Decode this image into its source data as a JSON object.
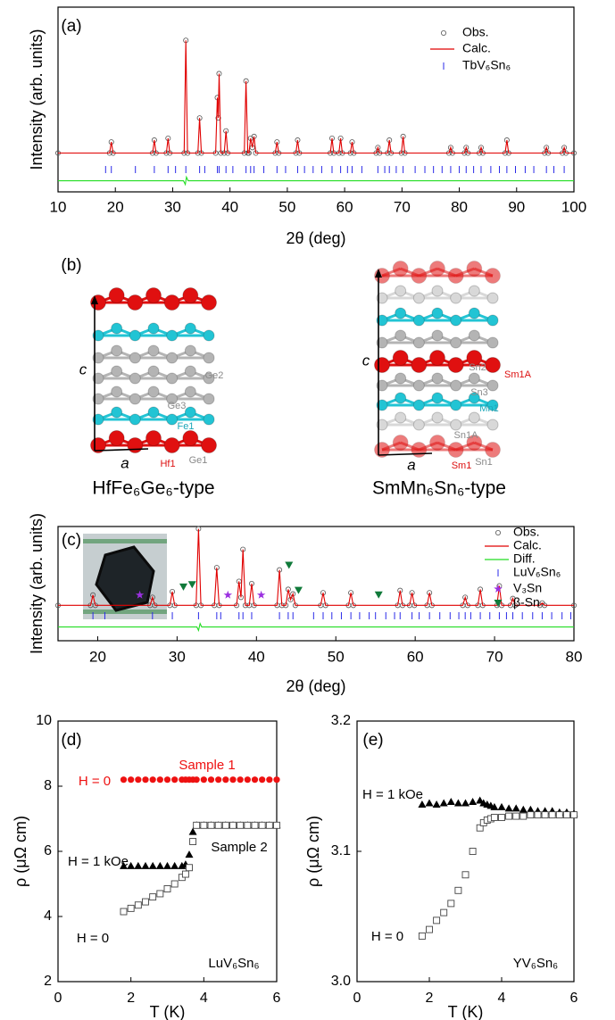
{
  "chart_data": [
    {
      "type": "line",
      "panel_label": "(a)",
      "xlabel": "2θ (deg)",
      "ylabel": "Intensity (arb. units)",
      "xlim": [
        10,
        100
      ],
      "xticks": [
        10,
        20,
        30,
        40,
        50,
        60,
        70,
        80,
        90,
        100
      ],
      "ylim": [
        0,
        100
      ],
      "x": [
        10,
        19.0,
        19.3,
        19.6,
        26.5,
        26.8,
        27.1,
        28.9,
        29.2,
        29.5,
        32.0,
        32.3,
        32.6,
        34.4,
        34.7,
        35.0,
        37.5,
        37.8,
        37.95,
        38.1,
        38.4,
        39.0,
        39.3,
        39.6,
        42.5,
        42.8,
        43.1,
        43.3,
        43.6,
        43.9,
        44.2,
        44.5,
        47.9,
        48.2,
        48.5,
        51.5,
        51.8,
        52.1,
        57.5,
        57.8,
        58.1,
        59.0,
        59.3,
        59.6,
        61.0,
        61.3,
        61.6,
        65.5,
        65.8,
        66.1,
        67.5,
        67.8,
        68.1,
        69.9,
        70.2,
        70.5,
        78.2,
        78.5,
        78.8,
        80.9,
        81.2,
        81.5,
        83.5,
        83.8,
        84.1,
        88.0,
        88.3,
        88.6,
        94.9,
        95.2,
        95.5,
        98.0,
        98.3,
        98.6,
        100
      ],
      "series": [
        {
          "name": "Obs.",
          "color": "#555555",
          "marker": "open-circle",
          "values": [
            21,
            21,
            27,
            21,
            21,
            28,
            21,
            21,
            29,
            21,
            21,
            82,
            21,
            21,
            40,
            21,
            21,
            51,
            40,
            64,
            21,
            21,
            33,
            21,
            21,
            60,
            21,
            21,
            29,
            24,
            30,
            21,
            21,
            27,
            21,
            21,
            28,
            21,
            21,
            29,
            21,
            21,
            29,
            21,
            21,
            27,
            21,
            21,
            24,
            21,
            21,
            28,
            21,
            21,
            30,
            21,
            21,
            24,
            21,
            21,
            24,
            21,
            21,
            24,
            21,
            21,
            28,
            21,
            21,
            24,
            21,
            21,
            24,
            21,
            21
          ]
        },
        {
          "name": "Calc.",
          "color": "#e00000",
          "marker": "line",
          "values": [
            21,
            21,
            27,
            21,
            21,
            28,
            21,
            21,
            29,
            21,
            21,
            82,
            21,
            21,
            40,
            21,
            21,
            51,
            40,
            64,
            21,
            21,
            33,
            21,
            21,
            60,
            21,
            21,
            29,
            24,
            30,
            21,
            21,
            27,
            21,
            21,
            28,
            21,
            21,
            29,
            21,
            21,
            29,
            21,
            21,
            27,
            21,
            21,
            24,
            21,
            21,
            28,
            21,
            21,
            30,
            21,
            21,
            24,
            21,
            21,
            24,
            21,
            21,
            24,
            21,
            21,
            28,
            21,
            21,
            24,
            21,
            21,
            24,
            21,
            21
          ]
        },
        {
          "name": "TbV₆Sn₆",
          "color": "#2a2ae8",
          "marker": "tick",
          "x": [
            18.3,
            19.3,
            23.5,
            26.8,
            29.2,
            30.5,
            32.3,
            34.7,
            35.6,
            37.8,
            38.1,
            39.3,
            40.5,
            42.8,
            43.6,
            44.2,
            45.9,
            48.2,
            49.7,
            51.8,
            53.0,
            54.5,
            56.0,
            57.8,
            59.3,
            60.5,
            61.3,
            63.0,
            65.8,
            67.0,
            67.8,
            69.0,
            70.2,
            72.3,
            74.0,
            75.5,
            77.0,
            78.5,
            80.0,
            81.2,
            82.5,
            83.8,
            85.5,
            87.0,
            88.3,
            89.8,
            91.5,
            93.0,
            95.2,
            96.5,
            98.3
          ]
        },
        {
          "color": "#22dd22",
          "marker": "line",
          "x": [
            10,
            31.9,
            32.2,
            32.4,
            32.7,
            100
          ],
          "values": [
            6,
            6,
            4,
            8,
            6,
            6
          ]
        }
      ]
    },
    {
      "type": "structure",
      "panel_label": "(b)",
      "structures": [
        {
          "caption": "HfFe₆Ge₆-type",
          "labels": [
            {
              "text": "c",
              "color": "#000000"
            },
            {
              "text": "a",
              "color": "#000000"
            },
            {
              "text": "Ge2",
              "color": "#8a8a8a"
            },
            {
              "text": "Ge3",
              "color": "#8a8a8a"
            },
            {
              "text": "Fe1",
              "color": "#1aa6b8"
            },
            {
              "text": "Hf1",
              "color": "#dd1111"
            },
            {
              "text": "Ge1",
              "color": "#8a8a8a"
            }
          ]
        },
        {
          "caption": "SmMn₆Sn₆-type",
          "labels": [
            {
              "text": "c",
              "color": "#000000"
            },
            {
              "text": "a",
              "color": "#000000"
            },
            {
              "text": "Sn2",
              "color": "#8a8a8a"
            },
            {
              "text": "Sm1A",
              "color": "#dd1111"
            },
            {
              "text": "Sn3",
              "color": "#8a8a8a"
            },
            {
              "text": "Mn1",
              "color": "#1aa6b8"
            },
            {
              "text": "Sn1A",
              "color": "#8a8a8a"
            },
            {
              "text": "Sm1",
              "color": "#dd1111"
            },
            {
              "text": "Sn1",
              "color": "#8a8a8a"
            }
          ]
        }
      ]
    },
    {
      "type": "line",
      "panel_label": "(c)",
      "xlabel": "2θ (deg)",
      "ylabel": "Intensity (arb. units)",
      "xlim": [
        15,
        80
      ],
      "xticks": [
        20,
        30,
        40,
        50,
        60,
        70,
        80
      ],
      "ylim": [
        0,
        100
      ],
      "x": [
        15,
        19.1,
        19.4,
        19.7,
        26.6,
        26.9,
        27.2,
        29.1,
        29.4,
        29.7,
        32.4,
        32.7,
        33.0,
        34.7,
        35.0,
        35.3,
        37.5,
        37.8,
        38.05,
        38.3,
        38.6,
        39.1,
        39.4,
        39.7,
        42.6,
        42.9,
        43.2,
        43.7,
        44.0,
        44.3,
        44.6,
        44.9,
        48.1,
        48.4,
        48.7,
        51.6,
        51.9,
        52.2,
        57.8,
        58.1,
        58.4,
        59.3,
        59.6,
        59.9,
        61.5,
        61.8,
        62.1,
        66.0,
        66.3,
        66.6,
        67.9,
        68.2,
        68.5,
        70.3,
        70.6,
        70.9,
        72.0,
        72.3,
        72.6,
        75.7,
        76.0,
        76.3,
        80
      ],
      "series": [
        {
          "name": "Obs.",
          "color": "#555555",
          "marker": "open-circle",
          "values": [
            31,
            31,
            40,
            31,
            31,
            38,
            31,
            31,
            43,
            31,
            31,
            98,
            31,
            31,
            64,
            31,
            31,
            52,
            38,
            80,
            31,
            31,
            50,
            31,
            31,
            62,
            31,
            31,
            45,
            36,
            41,
            31,
            31,
            42,
            31,
            31,
            42,
            31,
            31,
            44,
            31,
            31,
            42,
            31,
            31,
            42,
            31,
            31,
            38,
            31,
            31,
            45,
            31,
            31,
            48,
            31,
            31,
            37,
            31,
            31,
            33,
            31,
            31
          ]
        },
        {
          "name": "Calc.",
          "color": "#e00000",
          "marker": "line",
          "values": [
            31,
            31,
            40,
            31,
            31,
            38,
            31,
            31,
            43,
            31,
            31,
            98,
            31,
            31,
            64,
            31,
            31,
            52,
            38,
            80,
            31,
            31,
            50,
            31,
            31,
            62,
            31,
            31,
            45,
            36,
            41,
            31,
            31,
            42,
            31,
            31,
            42,
            31,
            31,
            44,
            31,
            31,
            42,
            31,
            31,
            42,
            31,
            31,
            38,
            31,
            31,
            45,
            31,
            31,
            48,
            31,
            31,
            37,
            31,
            31,
            33,
            31,
            31
          ]
        },
        {
          "name": "Diff.",
          "color": "#22dd22",
          "marker": "line",
          "x": [
            15,
            32.5,
            32.7,
            32.9,
            33.1,
            80
          ],
          "values": [
            12,
            12,
            9,
            15,
            12,
            12
          ]
        },
        {
          "name": "LuV₆Sn₆",
          "color": "#2a2ae8",
          "marker": "tick",
          "x": [
            19.4,
            20.9,
            26.9,
            29.4,
            32.7,
            35.0,
            35.5,
            37.8,
            38.3,
            39.4,
            42.9,
            44.0,
            44.6,
            47.2,
            48.4,
            49.5,
            50.7,
            51.9,
            53.0,
            54.2,
            55.0,
            56.3,
            57.4,
            58.1,
            59.6,
            60.5,
            61.8,
            63.1,
            64.4,
            65.5,
            66.3,
            67.0,
            68.2,
            69.4,
            70.6,
            71.5,
            72.3,
            73.5,
            74.8,
            76.0,
            77.2,
            78.5,
            79.6
          ]
        },
        {
          "name": "V₃Sn",
          "color": "#9b30e0",
          "marker": "star",
          "x": [
            25.3,
            36.4,
            40.6
          ],
          "values": [
            40,
            40,
            40
          ]
        },
        {
          "name": "β-Sn",
          "color": "#107a3a",
          "marker": "down-triangle",
          "x": [
            30.8,
            31.9,
            44.1,
            45.3,
            55.4
          ],
          "values": [
            47,
            49,
            66,
            44,
            40
          ]
        }
      ]
    },
    {
      "type": "scatter",
      "panel_label": "(d)",
      "xlabel": "T (K)",
      "ylabel": "ρ (μΩ cm)",
      "xlim": [
        0,
        6
      ],
      "xticks": [
        0,
        2,
        4,
        6
      ],
      "ylim": [
        2,
        10
      ],
      "yticks": [
        2,
        4,
        6,
        8,
        10
      ],
      "x": [
        1.8,
        2.0,
        2.2,
        2.4,
        2.6,
        2.8,
        3.0,
        3.2,
        3.4,
        3.5,
        3.6,
        3.7,
        3.8,
        4.0,
        4.2,
        4.4,
        4.6,
        4.8,
        5.0,
        5.2,
        5.4,
        5.6,
        5.8,
        6.0
      ],
      "series": [
        {
          "color": "#ee1111",
          "marker": "filled-circle",
          "values": [
            8.2,
            8.2,
            8.2,
            8.2,
            8.2,
            8.2,
            8.2,
            8.2,
            8.2,
            8.2,
            8.2,
            8.2,
            8.2,
            8.2,
            8.2,
            8.2,
            8.2,
            8.2,
            8.2,
            8.2,
            8.2,
            8.2,
            8.2,
            8.2
          ]
        },
        {
          "color": "#000000",
          "marker": "filled-triangle",
          "values": [
            5.55,
            5.55,
            5.55,
            5.55,
            5.55,
            5.55,
            5.55,
            5.55,
            5.55,
            5.6,
            5.9,
            6.6,
            6.8,
            6.8,
            6.8,
            6.8,
            6.8,
            6.8,
            6.8,
            6.8,
            6.8,
            6.8,
            6.8,
            6.8
          ]
        },
        {
          "color": "#444444",
          "marker": "open-square",
          "values": [
            4.15,
            4.25,
            4.35,
            4.45,
            4.6,
            4.7,
            4.85,
            5.0,
            5.2,
            5.3,
            5.5,
            6.3,
            6.8,
            6.8,
            6.8,
            6.8,
            6.8,
            6.8,
            6.8,
            6.8,
            6.8,
            6.8,
            6.8,
            6.8
          ]
        }
      ],
      "annotations": [
        {
          "text": "Sample 1",
          "color": "#ee1111"
        },
        {
          "text": "H = 0",
          "color": "#ee1111"
        },
        {
          "text": "Sample 2",
          "color": "#000000"
        },
        {
          "text": "H = 1 kOe",
          "color": "#000000"
        },
        {
          "text": "H = 0",
          "color": "#000000"
        },
        {
          "text": "LuV₆Sn₆",
          "color": "#000000"
        }
      ]
    },
    {
      "type": "scatter",
      "panel_label": "(e)",
      "xlabel": "T (K)",
      "ylabel": "ρ (μΩ cm)",
      "xlim": [
        0,
        6
      ],
      "xticks": [
        0,
        2,
        4,
        6
      ],
      "ylim": [
        3.0,
        3.2
      ],
      "yticks": [
        {
          "value": 3.0,
          "label": "3.0"
        },
        3.1,
        {
          "value": 3.2,
          "label": "3.2"
        }
      ],
      "x": [
        1.8,
        2.0,
        2.2,
        2.4,
        2.6,
        2.8,
        3.0,
        3.2,
        3.4,
        3.5,
        3.6,
        3.7,
        3.8,
        4.0,
        4.2,
        4.4,
        4.6,
        4.8,
        5.0,
        5.2,
        5.4,
        5.6,
        5.8,
        6.0
      ],
      "series": [
        {
          "color": "#000000",
          "marker": "filled-triangle",
          "values": [
            3.136,
            3.137,
            3.136,
            3.137,
            3.138,
            3.137,
            3.137,
            3.138,
            3.139,
            3.137,
            3.136,
            3.135,
            3.134,
            3.134,
            3.133,
            3.133,
            3.132,
            3.132,
            3.131,
            3.131,
            3.131,
            3.13,
            3.13,
            3.129
          ]
        },
        {
          "color": "#444444",
          "marker": "open-square",
          "values": [
            3.035,
            3.04,
            3.047,
            3.053,
            3.06,
            3.07,
            3.082,
            3.1,
            3.118,
            3.122,
            3.124,
            3.125,
            3.126,
            3.126,
            3.127,
            3.127,
            3.127,
            3.128,
            3.128,
            3.128,
            3.128,
            3.128,
            3.128,
            3.128
          ]
        }
      ],
      "annotations": [
        {
          "text": "H = 1 kOe",
          "color": "#000000"
        },
        {
          "text": "H = 0",
          "color": "#000000"
        },
        {
          "text": "YV₆Sn₆",
          "color": "#000000"
        }
      ]
    }
  ]
}
